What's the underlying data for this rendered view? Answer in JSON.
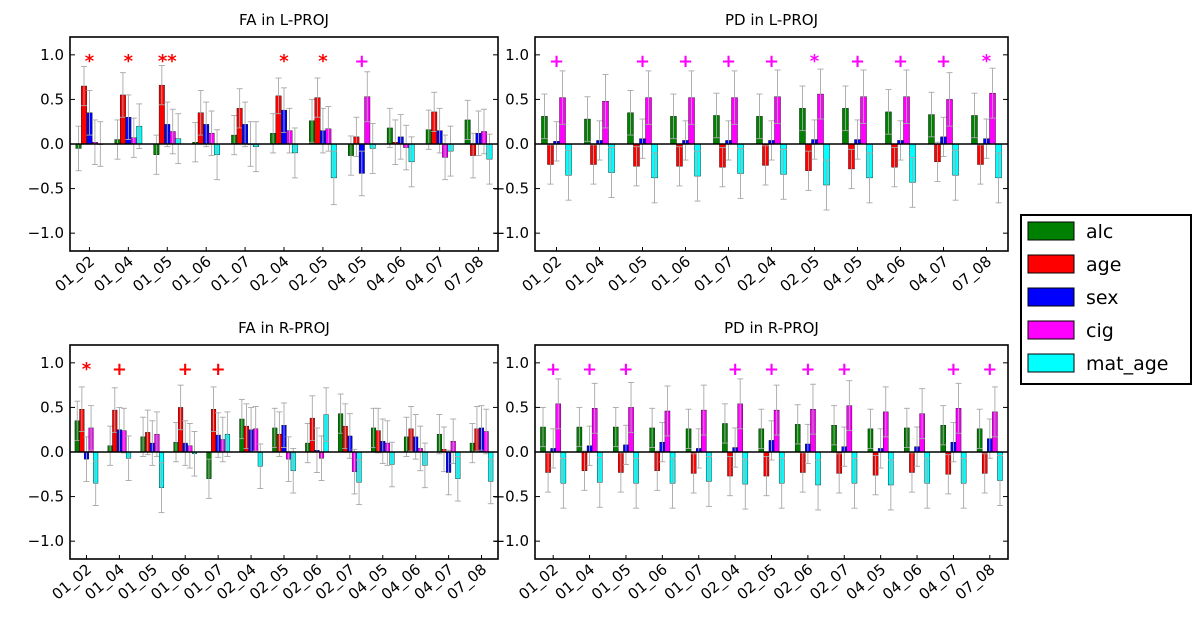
{
  "colors": {
    "alc": "#008000",
    "age": "#ff0000",
    "sex": "#0000ff",
    "cig": "#ff00ff",
    "mat_age": "#00ffff",
    "errorbar": "#a8a8a8",
    "sig_red": "#ff0000",
    "sig_magenta": "#ff00ff"
  },
  "legend": {
    "placement": "right-center",
    "entries": [
      {
        "key": "alc",
        "label": "alc"
      },
      {
        "key": "age",
        "label": "age"
      },
      {
        "key": "sex",
        "label": "sex"
      },
      {
        "key": "cig",
        "label": "cig"
      },
      {
        "key": "mat_age",
        "label": "mat_age"
      }
    ]
  },
  "chart_data": [
    {
      "type": "bar",
      "title": "FA in L-PROJ",
      "ylim": [
        -1.2,
        1.2
      ],
      "yticks": [
        -1.0,
        -0.5,
        0.0,
        0.5,
        1.0
      ],
      "ytick_labels": [
        "−1.0",
        "−0.5",
        "0.0",
        "0.5",
        "1.0"
      ],
      "grid": false,
      "categories": [
        "01_02",
        "01_04",
        "01_05",
        "01_06",
        "01_07",
        "02_04",
        "02_05",
        "04_05",
        "04_06",
        "04_07",
        "07_08"
      ],
      "series": [
        {
          "name": "alc",
          "values": [
            -0.05,
            0.05,
            -0.12,
            0.02,
            0.1,
            0.12,
            0.26,
            -0.13,
            0.18,
            0.16,
            0.27
          ]
        },
        {
          "name": "age",
          "values": [
            0.65,
            0.55,
            0.66,
            0.35,
            0.4,
            0.54,
            0.52,
            0.08,
            0.02,
            0.36,
            -0.13
          ]
        },
        {
          "name": "sex",
          "values": [
            0.35,
            0.3,
            0.22,
            0.22,
            0.22,
            0.38,
            0.15,
            -0.33,
            0.08,
            0.15,
            0.12
          ]
        },
        {
          "name": "cig",
          "values": [
            0.02,
            0.07,
            0.14,
            0.12,
            0.0,
            0.15,
            0.17,
            0.53,
            -0.04,
            -0.15,
            0.14
          ]
        },
        {
          "name": "mat_age",
          "values": [
            0.0,
            0.2,
            0.06,
            -0.12,
            -0.03,
            -0.1,
            -0.38,
            -0.05,
            -0.2,
            -0.08,
            -0.17
          ]
        }
      ],
      "errors": [
        [
          0.25,
          0.22,
          0.22,
          0.22,
          0.22,
          0.22,
          0.24,
          0.22,
          0.22,
          0.22,
          0.22
        ],
        [
          0.22,
          0.25,
          0.22,
          0.25,
          0.22,
          0.2,
          0.22,
          0.22,
          0.25,
          0.22,
          0.25
        ],
        [
          0.25,
          0.25,
          0.25,
          0.25,
          0.25,
          0.25,
          0.25,
          0.25,
          0.25,
          0.25,
          0.25
        ],
        [
          0.25,
          0.22,
          0.25,
          0.25,
          0.25,
          0.25,
          0.25,
          0.28,
          0.25,
          0.25,
          0.25
        ],
        [
          0.25,
          0.25,
          0.28,
          0.28,
          0.28,
          0.28,
          0.3,
          0.28,
          0.28,
          0.28,
          0.28
        ]
      ],
      "annotations": [
        {
          "category": "01_02",
          "text": "*",
          "color": "red"
        },
        {
          "category": "01_04",
          "text": "*",
          "color": "red"
        },
        {
          "category": "01_05",
          "text": "**",
          "color": "red"
        },
        {
          "category": "02_04",
          "text": "*",
          "color": "red"
        },
        {
          "category": "02_05",
          "text": "*",
          "color": "red"
        },
        {
          "category": "04_05",
          "text": "+",
          "color": "magenta"
        }
      ]
    },
    {
      "type": "bar",
      "title": "PD in L-PROJ",
      "ylim": [
        -1.2,
        1.2
      ],
      "yticks": [
        -1.0,
        -0.5,
        0.0,
        0.5,
        1.0
      ],
      "ytick_labels": [
        "−1.0",
        "−0.5",
        "0.0",
        "0.5",
        "1.0"
      ],
      "grid": false,
      "categories": [
        "01_02",
        "01_04",
        "01_05",
        "01_06",
        "01_07",
        "02_04",
        "02_05",
        "04_05",
        "04_06",
        "04_07",
        "07_08"
      ],
      "series": [
        {
          "name": "alc",
          "values": [
            0.31,
            0.28,
            0.35,
            0.31,
            0.32,
            0.31,
            0.4,
            0.4,
            0.36,
            0.33,
            0.32
          ]
        },
        {
          "name": "age",
          "values": [
            -0.23,
            -0.23,
            -0.25,
            -0.25,
            -0.26,
            -0.24,
            -0.3,
            -0.28,
            -0.26,
            -0.2,
            -0.23
          ]
        },
        {
          "name": "sex",
          "values": [
            0.03,
            0.04,
            0.06,
            0.04,
            0.04,
            0.04,
            0.05,
            0.05,
            0.04,
            0.08,
            0.06
          ]
        },
        {
          "name": "cig",
          "values": [
            0.52,
            0.48,
            0.52,
            0.52,
            0.52,
            0.53,
            0.56,
            0.53,
            0.53,
            0.5,
            0.57
          ]
        },
        {
          "name": "mat_age",
          "values": [
            -0.35,
            -0.32,
            -0.38,
            -0.36,
            -0.33,
            -0.34,
            -0.46,
            -0.38,
            -0.43,
            -0.35,
            -0.38
          ]
        }
      ],
      "errors": [
        [
          0.25,
          0.25,
          0.25,
          0.25,
          0.25,
          0.25,
          0.25,
          0.25,
          0.25,
          0.25,
          0.25
        ],
        [
          0.22,
          0.22,
          0.22,
          0.22,
          0.22,
          0.22,
          0.22,
          0.22,
          0.22,
          0.22,
          0.22
        ],
        [
          0.22,
          0.22,
          0.22,
          0.22,
          0.22,
          0.22,
          0.22,
          0.22,
          0.22,
          0.22,
          0.22
        ],
        [
          0.3,
          0.3,
          0.3,
          0.3,
          0.3,
          0.3,
          0.28,
          0.3,
          0.3,
          0.3,
          0.28
        ],
        [
          0.28,
          0.28,
          0.28,
          0.28,
          0.28,
          0.28,
          0.28,
          0.28,
          0.28,
          0.28,
          0.28
        ]
      ],
      "annotations": [
        {
          "category": "01_02",
          "text": "+",
          "color": "magenta"
        },
        {
          "category": "01_05",
          "text": "+",
          "color": "magenta"
        },
        {
          "category": "01_06",
          "text": "+",
          "color": "magenta"
        },
        {
          "category": "01_07",
          "text": "+",
          "color": "magenta"
        },
        {
          "category": "02_04",
          "text": "+",
          "color": "magenta"
        },
        {
          "category": "02_05",
          "text": "*",
          "color": "magenta"
        },
        {
          "category": "04_05",
          "text": "+",
          "color": "magenta"
        },
        {
          "category": "04_06",
          "text": "+",
          "color": "magenta"
        },
        {
          "category": "04_07",
          "text": "+",
          "color": "magenta"
        },
        {
          "category": "07_08",
          "text": "*",
          "color": "magenta"
        }
      ]
    },
    {
      "type": "bar",
      "title": "FA in R-PROJ",
      "ylim": [
        -1.2,
        1.2
      ],
      "yticks": [
        -1.0,
        -0.5,
        0.0,
        0.5,
        1.0
      ],
      "ytick_labels": [
        "−1.0",
        "−0.5",
        "0.0",
        "0.5",
        "1.0"
      ],
      "grid": false,
      "categories": [
        "01_02",
        "01_04",
        "01_05",
        "01_06",
        "01_07",
        "02_04",
        "02_05",
        "02_06",
        "02_07",
        "04_05",
        "04_06",
        "04_07",
        "07_08"
      ],
      "series": [
        {
          "name": "alc",
          "values": [
            0.35,
            0.07,
            0.17,
            0.11,
            -0.3,
            0.37,
            0.27,
            0.1,
            0.43,
            0.27,
            0.17,
            0.2,
            0.1
          ]
        },
        {
          "name": "age",
          "values": [
            0.48,
            0.47,
            0.22,
            0.5,
            0.48,
            0.29,
            0.2,
            0.38,
            0.29,
            0.24,
            0.26,
            0.03,
            0.26
          ]
        },
        {
          "name": "sex",
          "values": [
            -0.08,
            0.25,
            0.1,
            0.1,
            0.19,
            0.25,
            0.3,
            0.02,
            0.18,
            0.12,
            0.17,
            -0.23,
            0.27
          ]
        },
        {
          "name": "cig",
          "values": [
            0.27,
            0.24,
            0.2,
            0.07,
            0.14,
            0.26,
            -0.08,
            -0.07,
            -0.22,
            0.1,
            0.04,
            0.12,
            0.23
          ]
        },
        {
          "name": "mat_age",
          "values": [
            -0.35,
            -0.07,
            -0.4,
            -0.02,
            0.2,
            -0.16,
            -0.21,
            0.42,
            -0.34,
            -0.14,
            -0.15,
            -0.3,
            -0.33
          ]
        }
      ],
      "errors": [
        [
          0.22,
          0.22,
          0.22,
          0.22,
          0.22,
          0.22,
          0.22,
          0.22,
          0.22,
          0.22,
          0.22,
          0.22,
          0.22
        ],
        [
          0.25,
          0.25,
          0.25,
          0.25,
          0.25,
          0.25,
          0.25,
          0.25,
          0.25,
          0.25,
          0.25,
          0.25,
          0.25
        ],
        [
          0.25,
          0.25,
          0.25,
          0.25,
          0.25,
          0.25,
          0.25,
          0.25,
          0.25,
          0.25,
          0.25,
          0.25,
          0.25
        ],
        [
          0.25,
          0.25,
          0.25,
          0.25,
          0.25,
          0.25,
          0.25,
          0.25,
          0.25,
          0.25,
          0.25,
          0.25,
          0.25
        ],
        [
          0.25,
          0.25,
          0.28,
          0.25,
          0.25,
          0.25,
          0.25,
          0.3,
          0.25,
          0.25,
          0.25,
          0.25,
          0.25
        ]
      ],
      "annotations": [
        {
          "category": "01_02",
          "text": "*",
          "color": "red"
        },
        {
          "category": "01_04",
          "text": "+",
          "color": "red"
        },
        {
          "category": "01_06",
          "text": "+",
          "color": "red"
        },
        {
          "category": "01_07",
          "text": "+",
          "color": "red"
        }
      ]
    },
    {
      "type": "bar",
      "title": "PD in R-PROJ",
      "ylim": [
        -1.2,
        1.2
      ],
      "yticks": [
        -1.0,
        -0.5,
        0.0,
        0.5,
        1.0
      ],
      "ytick_labels": [
        "−1.0",
        "−0.5",
        "0.0",
        "0.5",
        "1.0"
      ],
      "grid": false,
      "categories": [
        "01_02",
        "01_04",
        "01_05",
        "01_06",
        "01_07",
        "02_04",
        "02_05",
        "02_06",
        "02_07",
        "04_05",
        "04_06",
        "04_07",
        "07_08"
      ],
      "series": [
        {
          "name": "alc",
          "values": [
            0.28,
            0.28,
            0.28,
            0.27,
            0.26,
            0.32,
            0.26,
            0.31,
            0.3,
            0.26,
            0.27,
            0.3,
            0.26
          ]
        },
        {
          "name": "age",
          "values": [
            -0.23,
            -0.21,
            -0.23,
            -0.21,
            -0.24,
            -0.27,
            -0.27,
            -0.23,
            -0.24,
            -0.26,
            -0.23,
            -0.25,
            -0.24
          ]
        },
        {
          "name": "sex",
          "values": [
            0.04,
            0.07,
            0.08,
            0.11,
            0.04,
            0.05,
            0.13,
            0.09,
            0.06,
            0.04,
            0.06,
            0.11,
            0.15
          ]
        },
        {
          "name": "cig",
          "values": [
            0.54,
            0.49,
            0.5,
            0.46,
            0.47,
            0.54,
            0.47,
            0.48,
            0.52,
            0.45,
            0.43,
            0.49,
            0.45
          ]
        },
        {
          "name": "mat_age",
          "values": [
            -0.35,
            -0.34,
            -0.35,
            -0.35,
            -0.33,
            -0.36,
            -0.35,
            -0.37,
            -0.35,
            -0.37,
            -0.35,
            -0.35,
            -0.32
          ]
        }
      ],
      "errors": [
        [
          0.22,
          0.22,
          0.22,
          0.22,
          0.22,
          0.22,
          0.22,
          0.22,
          0.22,
          0.22,
          0.22,
          0.22,
          0.22
        ],
        [
          0.22,
          0.22,
          0.22,
          0.22,
          0.22,
          0.22,
          0.22,
          0.22,
          0.22,
          0.22,
          0.22,
          0.22,
          0.22
        ],
        [
          0.22,
          0.22,
          0.22,
          0.22,
          0.22,
          0.22,
          0.22,
          0.22,
          0.22,
          0.22,
          0.22,
          0.22,
          0.22
        ],
        [
          0.28,
          0.28,
          0.28,
          0.28,
          0.28,
          0.28,
          0.28,
          0.28,
          0.28,
          0.28,
          0.28,
          0.28,
          0.28
        ],
        [
          0.28,
          0.28,
          0.28,
          0.28,
          0.28,
          0.28,
          0.28,
          0.28,
          0.28,
          0.28,
          0.28,
          0.28,
          0.28
        ]
      ],
      "annotations": [
        {
          "category": "01_02",
          "text": "+",
          "color": "magenta"
        },
        {
          "category": "01_04",
          "text": "+",
          "color": "magenta"
        },
        {
          "category": "01_05",
          "text": "+",
          "color": "magenta"
        },
        {
          "category": "02_04",
          "text": "+",
          "color": "magenta"
        },
        {
          "category": "02_05",
          "text": "+",
          "color": "magenta"
        },
        {
          "category": "02_06",
          "text": "+",
          "color": "magenta"
        },
        {
          "category": "02_07",
          "text": "+",
          "color": "magenta"
        },
        {
          "category": "04_07",
          "text": "+",
          "color": "magenta"
        },
        {
          "category": "07_08",
          "text": "+",
          "color": "magenta"
        }
      ]
    }
  ]
}
